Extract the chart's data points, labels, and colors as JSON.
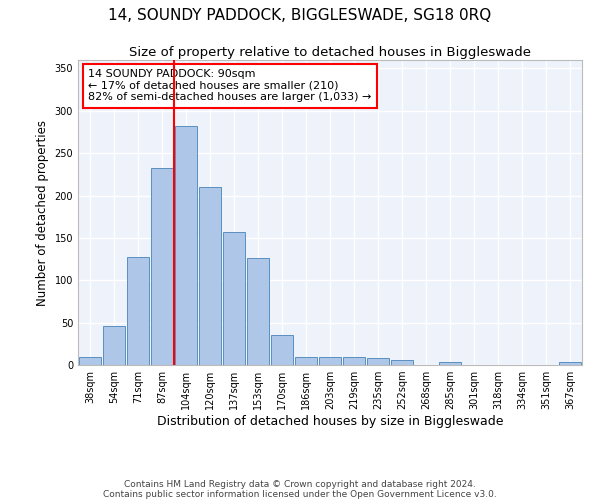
{
  "title": "14, SOUNDY PADDOCK, BIGGLESWADE, SG18 0RQ",
  "subtitle": "Size of property relative to detached houses in Biggleswade",
  "xlabel": "Distribution of detached houses by size in Biggleswade",
  "ylabel": "Number of detached properties",
  "footnote1": "Contains HM Land Registry data © Crown copyright and database right 2024.",
  "footnote2": "Contains public sector information licensed under the Open Government Licence v3.0.",
  "categories": [
    "38sqm",
    "54sqm",
    "71sqm",
    "87sqm",
    "104sqm",
    "120sqm",
    "137sqm",
    "153sqm",
    "170sqm",
    "186sqm",
    "203sqm",
    "219sqm",
    "235sqm",
    "252sqm",
    "268sqm",
    "285sqm",
    "301sqm",
    "318sqm",
    "334sqm",
    "351sqm",
    "367sqm"
  ],
  "values": [
    10,
    46,
    127,
    232,
    282,
    210,
    157,
    126,
    35,
    10,
    10,
    10,
    8,
    6,
    0,
    3,
    0,
    0,
    0,
    0,
    3
  ],
  "bar_color": "#aec6e8",
  "bar_edge_color": "#5a8fc0",
  "vline_index": 3,
  "vline_color": "red",
  "annotation_text": "14 SOUNDY PADDOCK: 90sqm\n← 17% of detached houses are smaller (210)\n82% of semi-detached houses are larger (1,033) →",
  "annotation_box_color": "white",
  "annotation_box_edge_color": "red",
  "ylim": [
    0,
    360
  ],
  "yticks": [
    0,
    50,
    100,
    150,
    200,
    250,
    300,
    350
  ],
  "bg_color": "#eef3fb",
  "grid_color": "white",
  "title_fontsize": 11,
  "subtitle_fontsize": 9.5,
  "xlabel_fontsize": 9,
  "ylabel_fontsize": 8.5,
  "tick_fontsize": 7,
  "annot_fontsize": 8,
  "footnote_fontsize": 6.5
}
